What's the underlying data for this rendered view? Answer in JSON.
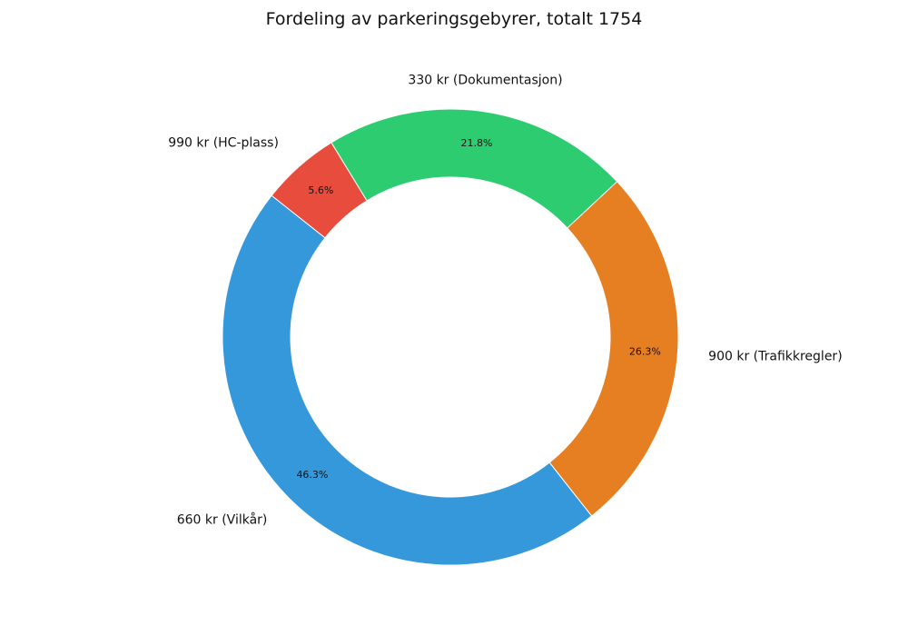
{
  "chart_data": {
    "type": "pie",
    "title": "Fordeling av parkeringsgebyrer, totalt 1754",
    "slices": [
      {
        "label": "900 kr (Trafikkregler)",
        "percent_label": "26.3%",
        "value": 26.3,
        "color": "#e67e22"
      },
      {
        "label": "660 kr (Vilkår)",
        "percent_label": "46.3%",
        "value": 46.3,
        "color": "#3498db"
      },
      {
        "label": "990 kr (HC-plass)",
        "percent_label": "5.6%",
        "value": 5.6,
        "color": "#e74c3c"
      },
      {
        "label": "330 kr (Dokumentasjon)",
        "percent_label": "21.8%",
        "value": 21.8,
        "color": "#2ecc71"
      }
    ],
    "start_angle_deg": 43.0,
    "direction": "clockwise",
    "donut": true
  }
}
